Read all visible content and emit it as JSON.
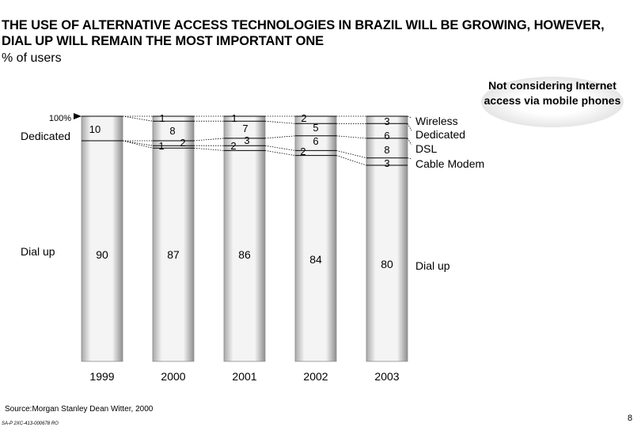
{
  "header": {
    "title": "THE USE OF ALTERNATIVE ACCESS TECHNOLOGIES IN BRAZIL WILL BE GROWING, HOWEVER, DIAL UP WILL REMAIN THE MOST IMPORTANT ONE",
    "subtitle": "% of users"
  },
  "note": {
    "text": "Not considering Internet access via mobile phones"
  },
  "footer": {
    "source": "Source:Morgan  Stanley Dean Witter, 2000",
    "code": "SA-P 2XC-413-000678   RO",
    "page": "8"
  },
  "chart_data": {
    "type": "bar",
    "stacked": true,
    "categories": [
      "1999",
      "2000",
      "2001",
      "2002",
      "2003"
    ],
    "ylim": [
      0,
      100
    ],
    "y_axis_label": "100%",
    "left_labels": [
      "Dedicated",
      "Dial up"
    ],
    "series": [
      {
        "name": "Dial up",
        "values": [
          90,
          87,
          86,
          84,
          80
        ]
      },
      {
        "name": "Cable Modem",
        "values": [
          0,
          1,
          2,
          2,
          3
        ]
      },
      {
        "name": "DSL",
        "values": [
          0,
          2,
          3,
          6,
          8
        ]
      },
      {
        "name": "Dedicated",
        "values": [
          10,
          8,
          7,
          5,
          6
        ]
      },
      {
        "name": "Wireless",
        "values": [
          0,
          1,
          1,
          2,
          3
        ]
      }
    ],
    "legend_right": [
      "Wireless",
      "Dedicated",
      "DSL",
      "Cable Modem",
      "Dial up"
    ],
    "colors": {
      "bar_fill": "#f2f2f2",
      "bar_edge": "#9a9a9a",
      "line": "#000000"
    }
  }
}
